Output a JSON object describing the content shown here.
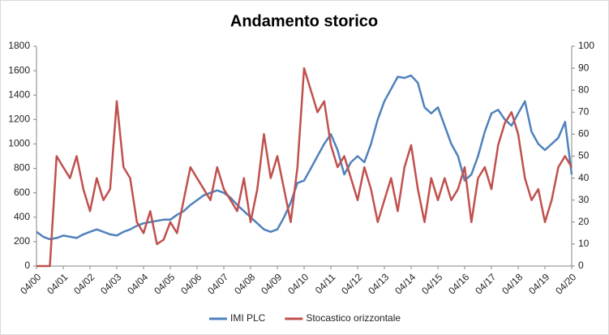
{
  "chart_data": {
    "type": "line",
    "title": "Andamento storico",
    "categories": [
      "04/00",
      null,
      null,
      null,
      "04/01",
      null,
      null,
      null,
      "04/02",
      null,
      null,
      null,
      "04/03",
      null,
      null,
      null,
      "04/04",
      null,
      null,
      null,
      "04/05",
      null,
      null,
      null,
      "04/06",
      null,
      null,
      null,
      "04/07",
      null,
      null,
      null,
      "04/08",
      null,
      null,
      null,
      "04/09",
      null,
      null,
      null,
      "04/10",
      null,
      null,
      null,
      "04/11",
      null,
      null,
      null,
      "04/12",
      null,
      null,
      null,
      "04/13",
      null,
      null,
      null,
      "04/14",
      null,
      null,
      null,
      "04/15",
      null,
      null,
      null,
      "04/16",
      null,
      null,
      null,
      "04/17",
      null,
      null,
      null,
      "04/18",
      null,
      null,
      null,
      "04/19",
      null,
      null,
      null,
      "04/20"
    ],
    "series": [
      {
        "name": "IMI PLC",
        "color": "#4f81bd",
        "values": [
          280,
          240,
          220,
          230,
          250,
          240,
          230,
          260,
          280,
          300,
          280,
          260,
          250,
          280,
          300,
          330,
          350,
          360,
          370,
          380,
          380,
          420,
          450,
          500,
          540,
          580,
          600,
          620,
          600,
          560,
          500,
          450,
          400,
          350,
          300,
          280,
          300,
          400,
          520,
          680,
          700,
          800,
          900,
          1000,
          1080,
          950,
          750,
          850,
          900,
          850,
          1000,
          1200,
          1350,
          1450,
          1550,
          1540,
          1560,
          1500,
          1300,
          1250,
          1300,
          1150,
          1000,
          900,
          700,
          750,
          900,
          1100,
          1250,
          1280,
          1200,
          1150,
          1250,
          1350,
          1100,
          1000,
          950,
          1000,
          1050,
          1180,
          750
        ]
      },
      {
        "name": "Stocastico orizzontale",
        "color": "#c0504d",
        "axis": "y2",
        "values": [
          0,
          0,
          0,
          50,
          45,
          40,
          50,
          35,
          25,
          40,
          30,
          35,
          75,
          45,
          40,
          20,
          15,
          25,
          10,
          12,
          20,
          15,
          30,
          45,
          40,
          35,
          30,
          45,
          35,
          30,
          25,
          40,
          20,
          35,
          60,
          40,
          50,
          35,
          20,
          45,
          90,
          80,
          70,
          75,
          55,
          45,
          50,
          40,
          30,
          45,
          35,
          20,
          30,
          40,
          25,
          45,
          55,
          35,
          20,
          40,
          30,
          40,
          30,
          35,
          45,
          20,
          40,
          45,
          35,
          55,
          65,
          70,
          60,
          40,
          30,
          35,
          20,
          30,
          45,
          50,
          45
        ]
      }
    ],
    "ylim": [
      0,
      1800
    ],
    "yticks": [
      0,
      200,
      400,
      600,
      800,
      1000,
      1200,
      1400,
      1600,
      1800
    ],
    "y2lim": [
      0,
      100
    ],
    "y2ticks": [
      0,
      10,
      20,
      30,
      40,
      50,
      60,
      70,
      80,
      90,
      100
    ]
  }
}
